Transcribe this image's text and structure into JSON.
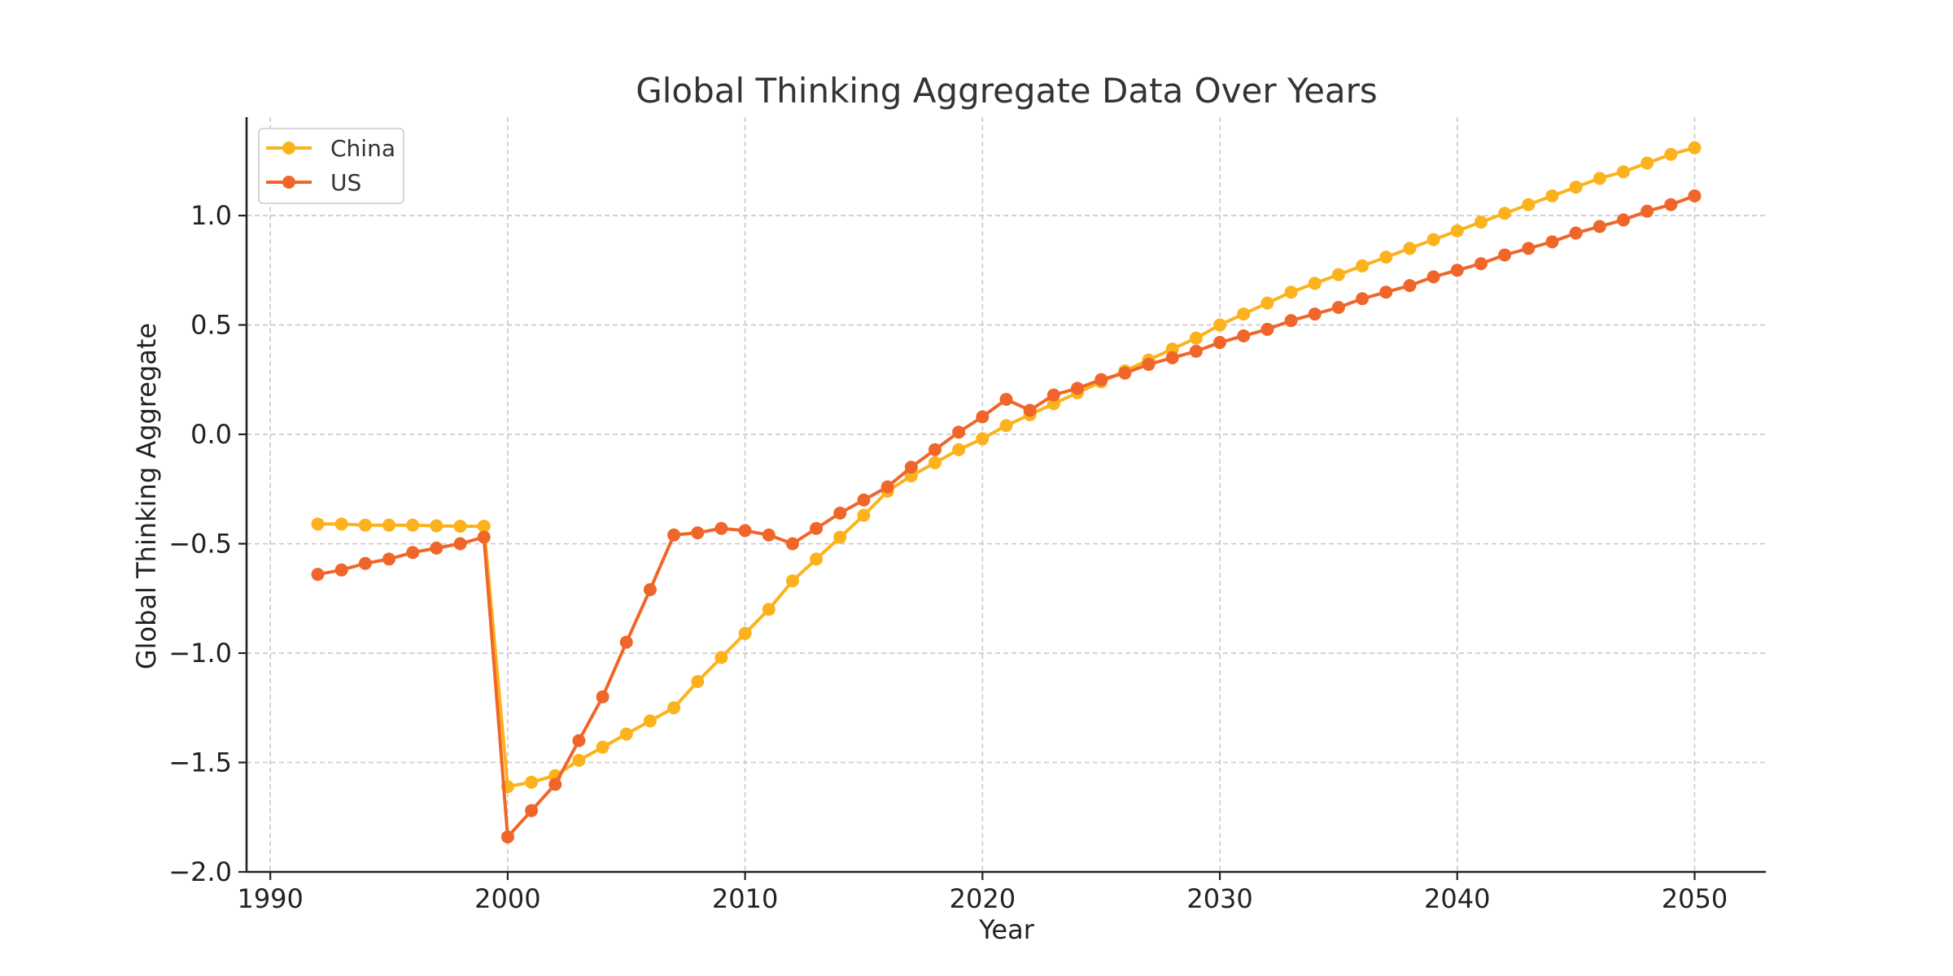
{
  "chart_data": {
    "type": "line",
    "title": "Global Thinking Aggregate Data Over Years",
    "xlabel": "Year",
    "ylabel": "Global Thinking Aggregate",
    "xlim": [
      1989,
      2053
    ],
    "ylim": [
      -2.0,
      1.45
    ],
    "xticks": [
      1990,
      2000,
      2010,
      2020,
      2030,
      2040,
      2050
    ],
    "yticks": [
      -2.0,
      -1.5,
      -1.0,
      -0.5,
      0.0,
      0.5,
      1.0
    ],
    "xtick_labels": [
      "1990",
      "2000",
      "2010",
      "2020",
      "2030",
      "2040",
      "2050"
    ],
    "ytick_labels": [
      "−2.0",
      "−1.5",
      "−1.0",
      "−0.5",
      "0.0",
      "0.5",
      "1.0"
    ],
    "grid": true,
    "legend_position": "top-left",
    "x": [
      1992,
      1993,
      1994,
      1995,
      1996,
      1997,
      1998,
      1999,
      2000,
      2001,
      2002,
      2003,
      2004,
      2005,
      2006,
      2007,
      2008,
      2009,
      2010,
      2011,
      2012,
      2013,
      2014,
      2015,
      2016,
      2017,
      2018,
      2019,
      2020,
      2021,
      2022,
      2023,
      2024,
      2025,
      2026,
      2027,
      2028,
      2029,
      2030,
      2031,
      2032,
      2033,
      2034,
      2035,
      2036,
      2037,
      2038,
      2039,
      2040,
      2041,
      2042,
      2043,
      2044,
      2045,
      2046,
      2047,
      2048,
      2049,
      2050
    ],
    "series": [
      {
        "name": "China",
        "color": "#FCB21C",
        "values": [
          -0.41,
          -0.41,
          -0.415,
          -0.415,
          -0.415,
          -0.418,
          -0.42,
          -0.42,
          -1.61,
          -1.59,
          -1.56,
          -1.49,
          -1.43,
          -1.37,
          -1.31,
          -1.25,
          -1.13,
          -1.02,
          -0.91,
          -0.8,
          -0.67,
          -0.57,
          -0.47,
          -0.37,
          -0.26,
          -0.19,
          -0.13,
          -0.07,
          -0.02,
          0.04,
          0.09,
          0.14,
          0.19,
          0.24,
          0.29,
          0.34,
          0.39,
          0.44,
          0.5,
          0.55,
          0.6,
          0.65,
          0.69,
          0.73,
          0.77,
          0.81,
          0.85,
          0.89,
          0.93,
          0.97,
          1.01,
          1.05,
          1.09,
          1.13,
          1.17,
          1.2,
          1.24,
          1.28,
          1.31
        ]
      },
      {
        "name": "US",
        "color": "#F0662A",
        "values": [
          -0.64,
          -0.62,
          -0.59,
          -0.57,
          -0.54,
          -0.52,
          -0.5,
          -0.47,
          -1.84,
          -1.72,
          -1.6,
          -1.4,
          -1.2,
          -0.95,
          -0.71,
          -0.46,
          -0.45,
          -0.43,
          -0.44,
          -0.46,
          -0.5,
          -0.43,
          -0.36,
          -0.3,
          -0.24,
          -0.15,
          -0.07,
          0.01,
          0.08,
          0.16,
          0.11,
          0.18,
          0.21,
          0.25,
          0.28,
          0.32,
          0.35,
          0.38,
          0.42,
          0.45,
          0.48,
          0.52,
          0.55,
          0.58,
          0.62,
          0.65,
          0.68,
          0.72,
          0.75,
          0.78,
          0.82,
          0.85,
          0.88,
          0.92,
          0.95,
          0.98,
          1.02,
          1.05,
          1.09
        ]
      }
    ]
  }
}
